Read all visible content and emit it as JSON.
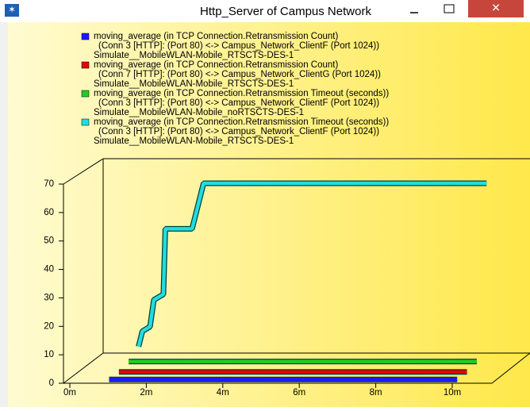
{
  "chart_data": {
    "type": "line3d",
    "title": "Http_Server of Campus Network",
    "series": [
      {
        "name": "moving_average (in TCP Connection.Retransmission Count)",
        "details": [
          "(Conn 3 [HTTP]: (Port 80) <-> Campus_Network_ClientF (Port 1024))",
          "Simulate__MobileWLAN-Mobile_RTSCTS-DES-1"
        ],
        "color": "#1a1aff",
        "x": [
          0.9,
          10
        ],
        "values": [
          0,
          0
        ]
      },
      {
        "name": "moving_average (in TCP Connection.Retransmission Count)",
        "details": [
          "(Conn 7 [HTTP]: (Port 80) <-> Campus_Network_ClientG (Port 1024))",
          "Simulate__MobileWLAN-Mobile_RTSCTS-DES-1"
        ],
        "color": "#e60000",
        "x": [
          0.9,
          10
        ],
        "values": [
          0,
          0
        ]
      },
      {
        "name": "moving_average (in TCP Connection.Retransmission Timeout (seconds))",
        "details": [
          "(Conn 3 [HTTP]: (Port 80) <-> Campus_Network_ClientF (Port 1024))",
          "Simulate__MobileWLAN-Mobile_noRTSCTS-DES-1"
        ],
        "color": "#22cc22",
        "x": [
          0.9,
          10
        ],
        "values": [
          1,
          1
        ]
      },
      {
        "name": "moving_average (in TCP Connection.Retransmission Timeout (seconds))",
        "details": [
          "(Conn 3 [HTTP]: (Port 80) <-> Campus_Network_ClientF (Port 1024))",
          "Simulate__MobileWLAN-Mobile_RTSCTS-DES-1"
        ],
        "color": "#22dddd",
        "x": [
          0.9,
          1.0,
          1.2,
          1.3,
          1.55,
          1.6,
          2.3,
          2.6,
          10
        ],
        "values": [
          3.6,
          9,
          10.6,
          20,
          22,
          45,
          45,
          61,
          61
        ]
      }
    ],
    "xlim": [
      0,
      11
    ],
    "xticks": [
      {
        "value": 0,
        "label": "0m"
      },
      {
        "value": 2,
        "label": "2m"
      },
      {
        "value": 4,
        "label": "4m"
      },
      {
        "value": 6,
        "label": "6m"
      },
      {
        "value": 8,
        "label": "8m"
      },
      {
        "value": 10,
        "label": "10m"
      }
    ],
    "ylim": [
      0,
      70
    ],
    "yticks": [
      0,
      10,
      20,
      30,
      40,
      50,
      60,
      70
    ]
  }
}
